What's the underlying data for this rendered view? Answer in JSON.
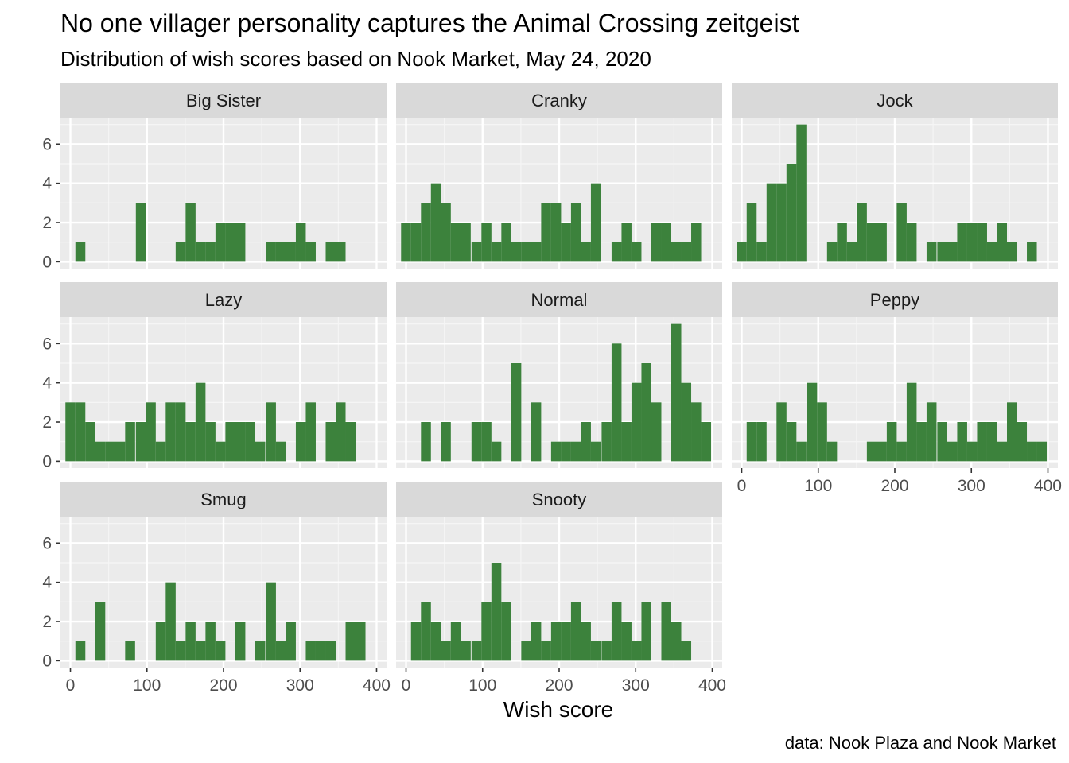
{
  "title": "No one villager personality captures the Animal Crossing zeitgeist",
  "subtitle": "Distribution of wish scores based on Nook Market, May 24, 2020",
  "caption": "data: Nook Plaza and Nook Market",
  "colors": {
    "bar": "#3c823c",
    "panel_bg": "#ebebeb",
    "strip_bg": "#d9d9d9",
    "grid_major": "#ffffff",
    "grid_minor": "#f5f5f5",
    "tick_text": "#4d4d4d"
  },
  "chart_data": {
    "type": "bar",
    "facet_layout": {
      "ncol": 3,
      "nrow": 3
    },
    "xlabel": "Wish score",
    "ylabel": "",
    "xlim": [
      -13,
      413
    ],
    "ylim": [
      -0.35,
      7.35
    ],
    "bin_width": 13,
    "x_ticks": [
      0,
      100,
      200,
      300,
      400
    ],
    "y_ticks": [
      0,
      2,
      4,
      6
    ],
    "panels": [
      {
        "name": "Big Sister",
        "bins": [
          [
            13,
            1
          ],
          [
            92,
            3
          ],
          [
            144,
            1
          ],
          [
            157,
            3
          ],
          [
            170,
            1
          ],
          [
            183,
            1
          ],
          [
            196,
            2
          ],
          [
            209,
            2
          ],
          [
            222,
            2
          ],
          [
            262,
            1
          ],
          [
            275,
            1
          ],
          [
            288,
            1
          ],
          [
            301,
            2
          ],
          [
            314,
            1
          ],
          [
            340,
            1
          ],
          [
            353,
            1
          ]
        ]
      },
      {
        "name": "Cranky",
        "bins": [
          [
            0,
            2
          ],
          [
            13,
            2
          ],
          [
            26,
            3
          ],
          [
            39,
            4
          ],
          [
            52,
            3
          ],
          [
            65,
            2
          ],
          [
            78,
            2
          ],
          [
            92,
            1
          ],
          [
            105,
            2
          ],
          [
            118,
            1
          ],
          [
            131,
            2
          ],
          [
            144,
            1
          ],
          [
            157,
            1
          ],
          [
            170,
            1
          ],
          [
            183,
            3
          ],
          [
            196,
            3
          ],
          [
            209,
            2
          ],
          [
            222,
            3
          ],
          [
            235,
            1
          ],
          [
            248,
            4
          ],
          [
            275,
            1
          ],
          [
            288,
            2
          ],
          [
            301,
            1
          ],
          [
            327,
            2
          ],
          [
            340,
            2
          ],
          [
            353,
            1
          ],
          [
            366,
            1
          ],
          [
            379,
            2
          ]
        ]
      },
      {
        "name": "Jock",
        "bins": [
          [
            0,
            1
          ],
          [
            13,
            3
          ],
          [
            26,
            1
          ],
          [
            39,
            4
          ],
          [
            52,
            4
          ],
          [
            65,
            5
          ],
          [
            78,
            7
          ],
          [
            118,
            1
          ],
          [
            131,
            2
          ],
          [
            144,
            1
          ],
          [
            157,
            3
          ],
          [
            170,
            2
          ],
          [
            183,
            2
          ],
          [
            209,
            3
          ],
          [
            222,
            2
          ],
          [
            248,
            1
          ],
          [
            262,
            1
          ],
          [
            275,
            1
          ],
          [
            288,
            2
          ],
          [
            301,
            2
          ],
          [
            314,
            2
          ],
          [
            327,
            1
          ],
          [
            340,
            2
          ],
          [
            353,
            1
          ],
          [
            379,
            1
          ]
        ]
      },
      {
        "name": "Lazy",
        "bins": [
          [
            0,
            3
          ],
          [
            13,
            3
          ],
          [
            26,
            2
          ],
          [
            39,
            1
          ],
          [
            52,
            1
          ],
          [
            65,
            1
          ],
          [
            78,
            2
          ],
          [
            92,
            2
          ],
          [
            105,
            3
          ],
          [
            118,
            1
          ],
          [
            131,
            3
          ],
          [
            144,
            3
          ],
          [
            157,
            2
          ],
          [
            170,
            4
          ],
          [
            183,
            2
          ],
          [
            196,
            1
          ],
          [
            209,
            2
          ],
          [
            222,
            2
          ],
          [
            235,
            2
          ],
          [
            248,
            1
          ],
          [
            262,
            3
          ],
          [
            275,
            1
          ],
          [
            301,
            2
          ],
          [
            314,
            3
          ],
          [
            340,
            2
          ],
          [
            353,
            3
          ],
          [
            366,
            2
          ]
        ]
      },
      {
        "name": "Normal",
        "bins": [
          [
            26,
            2
          ],
          [
            52,
            2
          ],
          [
            92,
            2
          ],
          [
            105,
            2
          ],
          [
            118,
            1
          ],
          [
            144,
            5
          ],
          [
            170,
            3
          ],
          [
            196,
            1
          ],
          [
            209,
            1
          ],
          [
            222,
            1
          ],
          [
            235,
            2
          ],
          [
            248,
            1
          ],
          [
            262,
            2
          ],
          [
            275,
            6
          ],
          [
            288,
            2
          ],
          [
            301,
            4
          ],
          [
            314,
            5
          ],
          [
            327,
            3
          ],
          [
            353,
            7
          ],
          [
            366,
            4
          ],
          [
            379,
            3
          ],
          [
            392,
            2
          ]
        ]
      },
      {
        "name": "Peppy",
        "bins": [
          [
            13,
            2
          ],
          [
            26,
            2
          ],
          [
            52,
            3
          ],
          [
            65,
            2
          ],
          [
            78,
            1
          ],
          [
            92,
            4
          ],
          [
            105,
            3
          ],
          [
            118,
            1
          ],
          [
            170,
            1
          ],
          [
            183,
            1
          ],
          [
            196,
            2
          ],
          [
            209,
            1
          ],
          [
            222,
            4
          ],
          [
            235,
            2
          ],
          [
            248,
            3
          ],
          [
            262,
            2
          ],
          [
            275,
            1
          ],
          [
            288,
            2
          ],
          [
            301,
            1
          ],
          [
            314,
            2
          ],
          [
            327,
            2
          ],
          [
            340,
            1
          ],
          [
            353,
            3
          ],
          [
            366,
            2
          ],
          [
            379,
            1
          ],
          [
            392,
            1
          ]
        ]
      },
      {
        "name": "Smug",
        "bins": [
          [
            13,
            1
          ],
          [
            39,
            3
          ],
          [
            78,
            1
          ],
          [
            118,
            2
          ],
          [
            131,
            4
          ],
          [
            144,
            1
          ],
          [
            157,
            2
          ],
          [
            170,
            1
          ],
          [
            183,
            2
          ],
          [
            196,
            1
          ],
          [
            222,
            2
          ],
          [
            248,
            1
          ],
          [
            262,
            4
          ],
          [
            275,
            1
          ],
          [
            288,
            2
          ],
          [
            314,
            1
          ],
          [
            327,
            1
          ],
          [
            340,
            1
          ],
          [
            366,
            2
          ],
          [
            379,
            2
          ]
        ]
      },
      {
        "name": "Snooty",
        "bins": [
          [
            13,
            2
          ],
          [
            26,
            3
          ],
          [
            39,
            2
          ],
          [
            52,
            1
          ],
          [
            65,
            2
          ],
          [
            78,
            1
          ],
          [
            92,
            1
          ],
          [
            105,
            3
          ],
          [
            118,
            5
          ],
          [
            131,
            3
          ],
          [
            157,
            1
          ],
          [
            170,
            2
          ],
          [
            183,
            1
          ],
          [
            196,
            2
          ],
          [
            209,
            2
          ],
          [
            222,
            3
          ],
          [
            235,
            2
          ],
          [
            248,
            1
          ],
          [
            262,
            1
          ],
          [
            275,
            3
          ],
          [
            288,
            2
          ],
          [
            301,
            1
          ],
          [
            314,
            3
          ],
          [
            340,
            3
          ],
          [
            353,
            2
          ],
          [
            366,
            1
          ]
        ]
      }
    ]
  }
}
